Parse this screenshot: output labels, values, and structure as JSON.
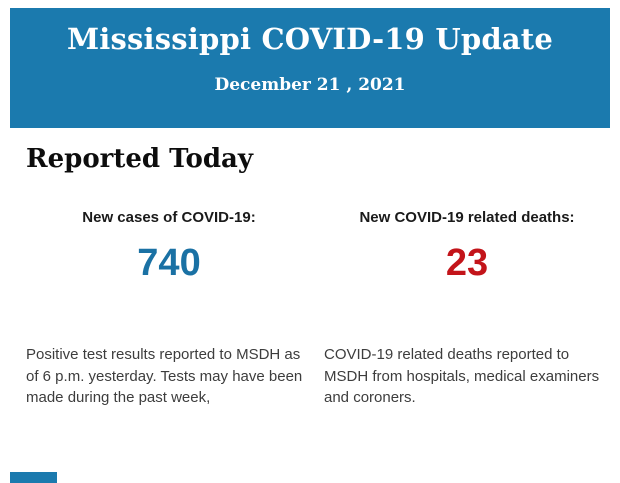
{
  "header": {
    "title": "Mississippi COVID-19 Update",
    "date": "December 21 , 2021",
    "bg_color": "#1b7aae",
    "text_color": "#ffffff"
  },
  "main": {
    "heading": "Reported Today",
    "stats": [
      {
        "label": "New cases of COVID-19:",
        "value": "740",
        "value_color": "#1a71a4",
        "description": "Positive test results reported to MSDH as of 6 p.m. yesterday. Tests may have been made during the past week,"
      },
      {
        "label": "New COVID-19 related deaths:",
        "value": "23",
        "value_color": "#c3141a",
        "description": "COVID-19 related deaths reported to MSDH from hospitals, medical examiners and coroners."
      }
    ]
  },
  "footer": {
    "partial_band_color": "#1b7aae"
  }
}
